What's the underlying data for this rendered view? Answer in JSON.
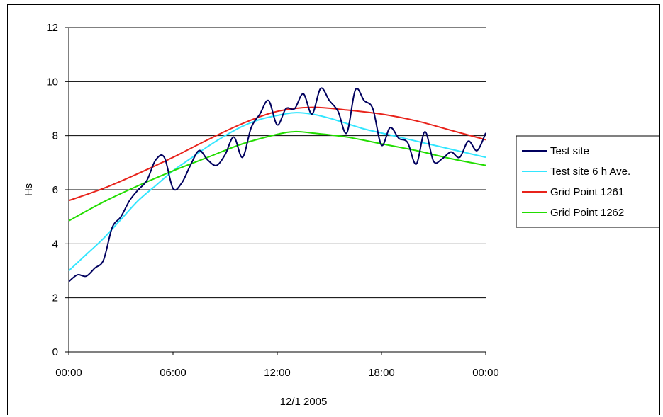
{
  "chart_data": {
    "type": "line",
    "title": "",
    "ylabel": "Hs",
    "xlabel_date": "12/1 2005",
    "xlim": [
      0,
      24
    ],
    "ylim": [
      0,
      12
    ],
    "x_ticks": [
      {
        "value": 0,
        "label": "00:00"
      },
      {
        "value": 6,
        "label": "06:00"
      },
      {
        "value": 12,
        "label": "12:00"
      },
      {
        "value": 18,
        "label": "18:00"
      },
      {
        "value": 24,
        "label": "00:00"
      }
    ],
    "y_ticks": [
      0,
      2,
      4,
      6,
      8,
      10,
      12
    ],
    "grid": "horizontal",
    "legend_position": "right",
    "series": [
      {
        "name": "Test site",
        "color": "#00005e",
        "points": [
          [
            0,
            2.6
          ],
          [
            0.5,
            2.85
          ],
          [
            1.0,
            2.8
          ],
          [
            1.5,
            3.1
          ],
          [
            2.0,
            3.4
          ],
          [
            2.5,
            4.6
          ],
          [
            3.0,
            5.0
          ],
          [
            3.5,
            5.6
          ],
          [
            4.0,
            6.0
          ],
          [
            4.5,
            6.35
          ],
          [
            5.0,
            7.1
          ],
          [
            5.5,
            7.2
          ],
          [
            6.0,
            6.05
          ],
          [
            6.5,
            6.25
          ],
          [
            7.0,
            6.9
          ],
          [
            7.5,
            7.45
          ],
          [
            8.0,
            7.1
          ],
          [
            8.5,
            6.9
          ],
          [
            9.0,
            7.3
          ],
          [
            9.5,
            7.95
          ],
          [
            10.0,
            7.2
          ],
          [
            10.5,
            8.3
          ],
          [
            11.0,
            8.8
          ],
          [
            11.5,
            9.3
          ],
          [
            12.0,
            8.4
          ],
          [
            12.5,
            9.0
          ],
          [
            13.0,
            9.0
          ],
          [
            13.5,
            9.55
          ],
          [
            14.0,
            8.8
          ],
          [
            14.5,
            9.75
          ],
          [
            15.0,
            9.3
          ],
          [
            15.5,
            8.9
          ],
          [
            16.0,
            8.1
          ],
          [
            16.5,
            9.7
          ],
          [
            17.0,
            9.3
          ],
          [
            17.5,
            9.0
          ],
          [
            18.0,
            7.65
          ],
          [
            18.5,
            8.3
          ],
          [
            19.0,
            7.9
          ],
          [
            19.5,
            7.75
          ],
          [
            20.0,
            6.95
          ],
          [
            20.5,
            8.15
          ],
          [
            21.0,
            7.05
          ],
          [
            21.5,
            7.15
          ],
          [
            22.0,
            7.4
          ],
          [
            22.5,
            7.2
          ],
          [
            23.0,
            7.8
          ],
          [
            23.5,
            7.45
          ],
          [
            24.0,
            8.1
          ]
        ]
      },
      {
        "name": "Test site 6 h Ave.",
        "color": "#33e6ff",
        "points": [
          [
            0,
            3.0
          ],
          [
            1,
            3.6
          ],
          [
            2,
            4.2
          ],
          [
            3,
            4.9
          ],
          [
            4,
            5.6
          ],
          [
            5,
            6.15
          ],
          [
            6,
            6.7
          ],
          [
            7,
            7.15
          ],
          [
            8,
            7.6
          ],
          [
            9,
            8.0
          ],
          [
            10,
            8.35
          ],
          [
            11,
            8.6
          ],
          [
            12,
            8.75
          ],
          [
            13,
            8.85
          ],
          [
            14,
            8.8
          ],
          [
            15,
            8.65
          ],
          [
            16,
            8.45
          ],
          [
            17,
            8.25
          ],
          [
            18,
            8.1
          ],
          [
            19,
            7.95
          ],
          [
            20,
            7.8
          ],
          [
            21,
            7.65
          ],
          [
            22,
            7.5
          ],
          [
            23,
            7.35
          ],
          [
            24,
            7.2
          ]
        ]
      },
      {
        "name": "Grid Point 1261",
        "color": "#e8231b",
        "points": [
          [
            0,
            5.6
          ],
          [
            2,
            6.05
          ],
          [
            4,
            6.6
          ],
          [
            6,
            7.2
          ],
          [
            8,
            7.85
          ],
          [
            10,
            8.45
          ],
          [
            12,
            8.9
          ],
          [
            14,
            9.05
          ],
          [
            16,
            8.95
          ],
          [
            18,
            8.8
          ],
          [
            20,
            8.55
          ],
          [
            22,
            8.2
          ],
          [
            24,
            7.85
          ]
        ]
      },
      {
        "name": "Grid Point 1262",
        "color": "#22dd00",
        "points": [
          [
            0,
            4.85
          ],
          [
            2,
            5.55
          ],
          [
            4,
            6.15
          ],
          [
            6,
            6.7
          ],
          [
            8,
            7.2
          ],
          [
            10,
            7.7
          ],
          [
            12,
            8.05
          ],
          [
            13,
            8.15
          ],
          [
            14,
            8.1
          ],
          [
            16,
            7.95
          ],
          [
            18,
            7.7
          ],
          [
            20,
            7.45
          ],
          [
            22,
            7.15
          ],
          [
            24,
            6.9
          ]
        ]
      }
    ]
  }
}
